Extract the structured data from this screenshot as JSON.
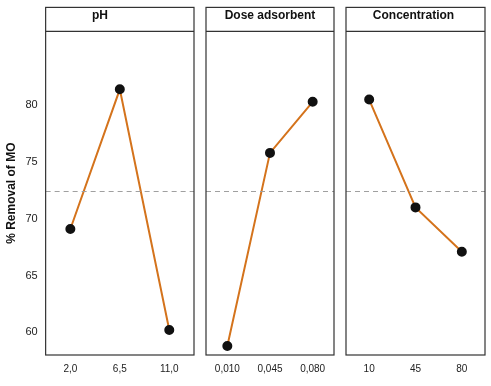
{
  "chart_data": [
    {
      "type": "line",
      "title": "pH",
      "y_label": "% Removal of MO",
      "categories": [
        "2,0",
        "6,5",
        "11,0"
      ],
      "values": [
        69.1,
        81.4,
        60.2
      ],
      "color": "#d4731c",
      "marker": "circle",
      "ylim": [
        58,
        86.5
      ],
      "yticks": [
        60,
        65,
        70,
        75,
        80
      ],
      "mean_line": 72.4
    },
    {
      "type": "line",
      "title": "Dose adsorbent",
      "categories": [
        "0,010",
        "0,045",
        "0,080"
      ],
      "values": [
        58.8,
        75.8,
        80.3
      ],
      "color": "#d4731c",
      "marker": "circle",
      "tick_labels": "x",
      "ylim": [
        58,
        86.5
      ],
      "yticks": [
        60,
        65,
        70,
        75,
        80
      ],
      "mean_line": 72.4
    },
    {
      "type": "line",
      "title": "Concentration",
      "categories": [
        "10",
        "45",
        "80"
      ],
      "values": [
        80.5,
        71.0,
        67.1
      ],
      "color": "#d4731c",
      "marker": "circle",
      "tick_labels": "x",
      "ylim": [
        58,
        86.5
      ],
      "yticks": [
        60,
        65,
        70,
        75,
        80
      ],
      "mean_line": 72.4
    }
  ]
}
